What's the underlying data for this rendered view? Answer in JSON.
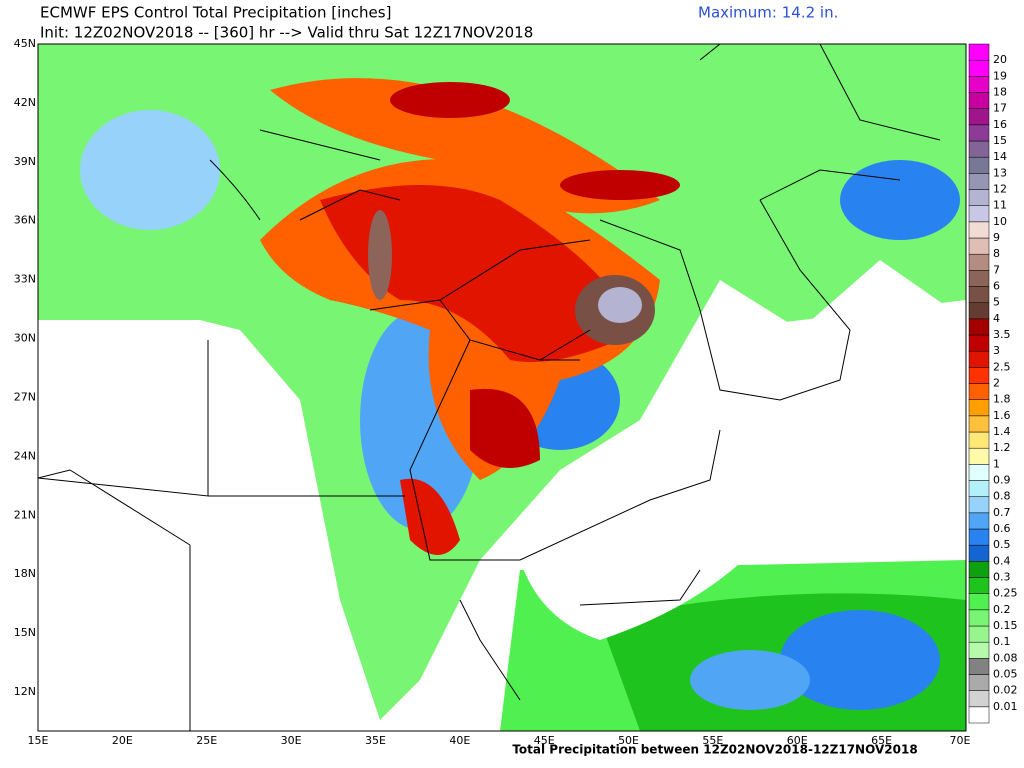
{
  "header": {
    "title": "ECMWF EPS Control Total Precipitation [inches]",
    "subtitle": "Init: 12Z02NOV2018 -- [360] hr --> Valid thru Sat 12Z17NOV2018",
    "maximum": "Maximum: 14.2 in."
  },
  "map": {
    "lon_labels": [
      "15E",
      "20E",
      "25E",
      "30E",
      "35E",
      "40E",
      "45E",
      "50E",
      "55E",
      "60E",
      "65E",
      "70E"
    ],
    "lat_labels": [
      "45N",
      "42N",
      "39N",
      "36N",
      "33N",
      "30N",
      "27N",
      "24N",
      "21N",
      "18N",
      "15N",
      "12N"
    ]
  },
  "legend": {
    "levels": [
      {
        "label": "0.01",
        "color": "#ffffff"
      },
      {
        "label": "0.02",
        "color": "#d2d2d2"
      },
      {
        "label": "0.05",
        "color": "#aaaaaa"
      },
      {
        "label": "0.08",
        "color": "#828282"
      },
      {
        "label": "0.1",
        "color": "#b4faaa"
      },
      {
        "label": "0.15",
        "color": "#96f58c"
      },
      {
        "label": "0.2",
        "color": "#78f573"
      },
      {
        "label": "0.25",
        "color": "#50f050"
      },
      {
        "label": "0.3",
        "color": "#1ec31e"
      },
      {
        "label": "0.4",
        "color": "#0fa00f"
      },
      {
        "label": "0.5",
        "color": "#1464d2"
      },
      {
        "label": "0.6",
        "color": "#2882f0"
      },
      {
        "label": "0.7",
        "color": "#50a5f5"
      },
      {
        "label": "0.8",
        "color": "#96d2fa"
      },
      {
        "label": "0.9",
        "color": "#b4f0fa"
      },
      {
        "label": "1",
        "color": "#e1ffff"
      },
      {
        "label": "1.2",
        "color": "#fffaaa"
      },
      {
        "label": "1.4",
        "color": "#ffe878"
      },
      {
        "label": "1.6",
        "color": "#ffc03c"
      },
      {
        "label": "1.8",
        "color": "#ffa000"
      },
      {
        "label": "2",
        "color": "#ff6000"
      },
      {
        "label": "2.5",
        "color": "#ff3200"
      },
      {
        "label": "3",
        "color": "#e11400"
      },
      {
        "label": "3.5",
        "color": "#c00000"
      },
      {
        "label": "4",
        "color": "#a50000"
      },
      {
        "label": "5",
        "color": "#643c32"
      },
      {
        "label": "6",
        "color": "#785046"
      },
      {
        "label": "7",
        "color": "#8c645a"
      },
      {
        "label": "8",
        "color": "#b48c82"
      },
      {
        "label": "9",
        "color": "#e1beb4"
      },
      {
        "label": "10",
        "color": "#f0dcd2"
      },
      {
        "label": "11",
        "color": "#c8c8e6"
      },
      {
        "label": "12",
        "color": "#b4b4d2"
      },
      {
        "label": "13",
        "color": "#9696b4"
      },
      {
        "label": "14",
        "color": "#787896"
      },
      {
        "label": "15",
        "color": "#826496"
      },
      {
        "label": "16",
        "color": "#8c3c96"
      },
      {
        "label": "17",
        "color": "#a0148c"
      },
      {
        "label": "18",
        "color": "#c800a0"
      },
      {
        "label": "19",
        "color": "#e600c8"
      },
      {
        "label": "20",
        "color": "#ff00ff"
      }
    ]
  },
  "footer": {
    "caption": "Total Precipitation between 12Z02NOV2018-12Z17NOV2018"
  }
}
